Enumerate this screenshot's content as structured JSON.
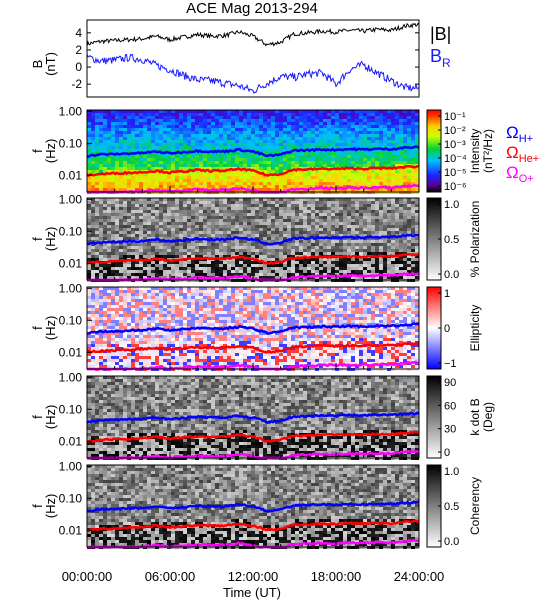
{
  "figure": {
    "title": "ACE Mag 2013-294",
    "xlabel": "Time (UT)",
    "time_ticks": [
      "00:00:00",
      "06:00:00",
      "12:00:00",
      "18:00:00",
      "24:00:00"
    ],
    "time_range_hours": [
      0,
      24
    ]
  },
  "colors": {
    "B_total": "#000000",
    "B_R": "#1a1aff",
    "H_plus": "#0000ff",
    "He_plus": "#ff0000",
    "O_plus": "#ff00ff"
  },
  "chart_data": [
    {
      "type": "line",
      "panel": "magnetic-field",
      "ylabel_top": "B",
      "ylabel_unit": "(nT)",
      "ylim": [
        -3.5,
        5.5
      ],
      "yticks": [
        "4",
        "2",
        "0",
        "-2"
      ],
      "ytick_values": [
        4,
        2,
        0,
        -2
      ],
      "legend": [
        {
          "label": "|B|",
          "color": "#000000"
        },
        {
          "label": "B",
          "sub": "R",
          "color": "#1a1aff"
        }
      ],
      "series": [
        {
          "name": "|B|",
          "x": [
            0,
            1,
            2,
            3,
            4,
            5,
            6,
            7,
            8,
            9,
            10,
            11,
            12,
            13,
            14,
            15,
            16,
            17,
            18,
            19,
            20,
            21,
            22,
            23,
            24
          ],
          "values": [
            2.7,
            3.0,
            3.1,
            3.2,
            3.3,
            3.6,
            3.2,
            3.5,
            3.8,
            3.6,
            3.7,
            4.1,
            3.6,
            2.6,
            2.9,
            3.9,
            4.0,
            4.2,
            4.1,
            4.3,
            4.2,
            4.4,
            4.3,
            4.8,
            5.0
          ]
        },
        {
          "name": "B_R",
          "x": [
            0,
            1,
            2,
            3,
            4,
            5,
            6,
            7,
            8,
            9,
            10,
            11,
            12,
            13,
            14,
            15,
            16,
            17,
            18,
            19,
            20,
            21,
            22,
            23,
            24
          ],
          "values": [
            1.2,
            0.7,
            0.8,
            1.1,
            0.9,
            0.2,
            -0.3,
            -1.0,
            -1.5,
            -1.6,
            -1.9,
            -2.2,
            -2.8,
            -1.9,
            -1.1,
            -1.2,
            -0.8,
            -0.7,
            -2.0,
            -0.3,
            0.3,
            -0.7,
            -1.6,
            -2.4,
            -2.5
          ]
        }
      ]
    },
    {
      "type": "heatmap",
      "panel": "intensity-spectrogram",
      "ylabel_top": "f",
      "ylabel_unit": "(Hz)",
      "ylim": [
        0.003,
        1.1
      ],
      "yscale": "log",
      "yticks": [
        "1.00",
        "0.10",
        "0.01"
      ],
      "ytick_values": [
        1.0,
        0.1,
        0.01
      ],
      "colorbar": {
        "label": "Intensity",
        "unit": "(nT²/Hz)",
        "scale": "log",
        "ticks": [
          "10⁻¹",
          "10⁻²",
          "10⁻³",
          "10⁻⁴",
          "10⁻⁵",
          "10⁻⁶"
        ],
        "range": [
          1e-06,
          0.1
        ],
        "colormap": "rainbow"
      }
    },
    {
      "type": "heatmap",
      "panel": "polarization",
      "ylabel_top": "f",
      "ylabel_unit": "(Hz)",
      "ylim": [
        0.003,
        1.1
      ],
      "yscale": "log",
      "yticks": [
        "1.00",
        "0.10",
        "0.01"
      ],
      "ytick_values": [
        1.0,
        0.1,
        0.01
      ],
      "colorbar": {
        "label": "% Polarization",
        "ticks": [
          "1.0",
          "0.5",
          "0.0"
        ],
        "range": [
          0,
          1
        ],
        "colormap": "gray"
      }
    },
    {
      "type": "heatmap",
      "panel": "ellipticity",
      "ylabel_top": "f",
      "ylabel_unit": "(Hz)",
      "ylim": [
        0.003,
        1.1
      ],
      "yscale": "log",
      "yticks": [
        "1.00",
        "0.10",
        "0.01"
      ],
      "ytick_values": [
        1.0,
        0.1,
        0.01
      ],
      "colorbar": {
        "label": "Ellipticity",
        "ticks": [
          "1",
          "0",
          "−1"
        ],
        "range": [
          -1,
          1
        ],
        "colormap": "blue-white-red"
      }
    },
    {
      "type": "heatmap",
      "panel": "k-dot-b",
      "ylabel_top": "f",
      "ylabel_unit": "(Hz)",
      "ylim": [
        0.003,
        1.1
      ],
      "yscale": "log",
      "yticks": [
        "1.00",
        "0.10",
        "0.01"
      ],
      "ytick_values": [
        1.0,
        0.1,
        0.01
      ],
      "colorbar": {
        "label": "k dot B",
        "unit": "(Deg)",
        "ticks": [
          "90",
          "60",
          "30",
          "0"
        ],
        "range": [
          0,
          90
        ],
        "colormap": "gray"
      }
    },
    {
      "type": "heatmap",
      "panel": "coherency",
      "ylabel_top": "f",
      "ylabel_unit": "(Hz)",
      "ylim": [
        0.003,
        1.1
      ],
      "yscale": "log",
      "yticks": [
        "1.00",
        "0.10",
        "0.01"
      ],
      "ytick_values": [
        1.0,
        0.1,
        0.01
      ],
      "colorbar": {
        "label": "Coherency",
        "ticks": [
          "1.0",
          "0.5",
          "0.0"
        ],
        "range": [
          0,
          1
        ],
        "colormap": "gray"
      }
    }
  ],
  "gyrofrequency_legend": [
    {
      "symbol": "Ω",
      "sub": "H+",
      "color": "#0000ff"
    },
    {
      "symbol": "Ω",
      "sub": "He+",
      "color": "#ff0000"
    },
    {
      "symbol": "Ω",
      "sub": "O+",
      "color": "#ff00ff"
    }
  ],
  "gyrofrequency_series": {
    "x": [
      0,
      1,
      2,
      3,
      4,
      5,
      6,
      7,
      8,
      9,
      10,
      11,
      12,
      13,
      14,
      15,
      16,
      17,
      18,
      19,
      20,
      21,
      22,
      23,
      24
    ],
    "H_plus": [
      0.04,
      0.045,
      0.046,
      0.048,
      0.05,
      0.055,
      0.049,
      0.053,
      0.058,
      0.055,
      0.056,
      0.063,
      0.055,
      0.04,
      0.044,
      0.06,
      0.061,
      0.064,
      0.063,
      0.066,
      0.064,
      0.067,
      0.066,
      0.073,
      0.076
    ],
    "He_plus": [
      0.01,
      0.011,
      0.0115,
      0.012,
      0.0125,
      0.0138,
      0.0122,
      0.0133,
      0.0145,
      0.0138,
      0.014,
      0.0157,
      0.0138,
      0.01,
      0.011,
      0.015,
      0.0153,
      0.016,
      0.0157,
      0.0165,
      0.016,
      0.0168,
      0.0165,
      0.0183,
      0.019
    ],
    "O_plus": [
      0.0025,
      0.0028,
      0.0029,
      0.003,
      0.0031,
      0.0034,
      0.0031,
      0.0033,
      0.0036,
      0.0034,
      0.0035,
      0.0039,
      0.0034,
      0.0025,
      0.0028,
      0.0037,
      0.0038,
      0.004,
      0.0039,
      0.0041,
      0.004,
      0.0042,
      0.0041,
      0.0046,
      0.0048
    ]
  }
}
